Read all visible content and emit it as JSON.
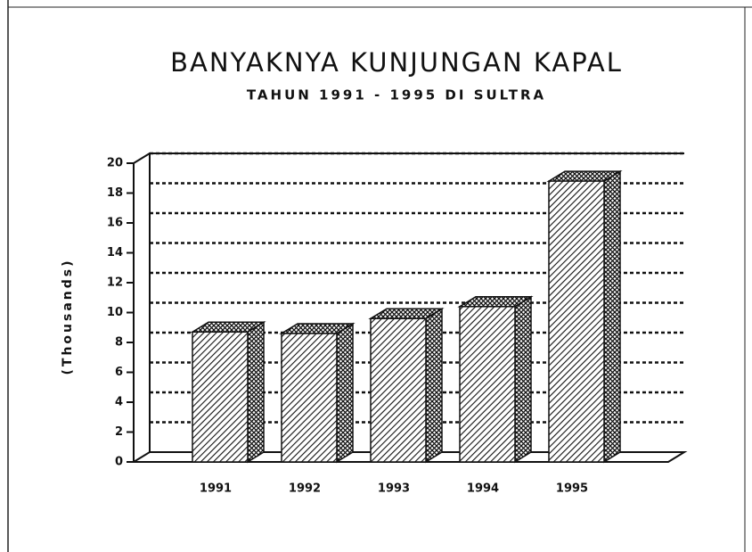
{
  "chart_data": {
    "type": "bar3d",
    "title": "BANYAKNYA KUNJUNGAN KAPAL",
    "subtitle": "TAHUN 1991 - 1995 DI SULTRA",
    "y_label": "(Thousands)",
    "categories": [
      "1991",
      "1992",
      "1993",
      "1994",
      "1995"
    ],
    "values": [
      8.7,
      8.6,
      9.6,
      10.4,
      18.8
    ],
    "ylim": [
      0,
      20
    ],
    "yticks": [
      0,
      2,
      4,
      6,
      8,
      10,
      12,
      14,
      16,
      18,
      20
    ],
    "grid": true
  }
}
